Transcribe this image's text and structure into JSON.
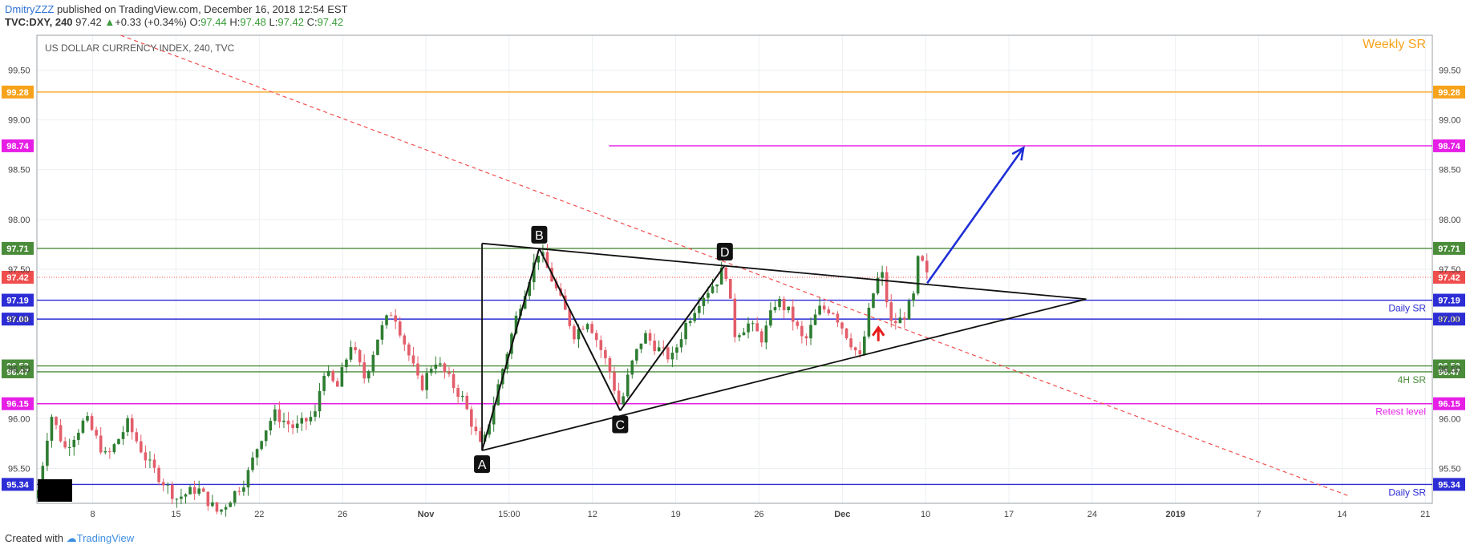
{
  "header": {
    "author": "DmitryZZZ",
    "published": " published on TradingView.com, December 16, 2018 12:54 EST",
    "symbol": "TVC:DXY, 240",
    "last": "97.42",
    "change": "+0.33 (+0.34%)",
    "o_label": "O:",
    "o_val": "97.44",
    "h_label": "H:",
    "h_val": "97.48",
    "l_label": "L:",
    "l_val": "97.42",
    "c_label": "C:",
    "c_val": "97.42"
  },
  "footer": {
    "created": "Created with",
    "brand": "TradingView"
  },
  "chart_data": {
    "type": "candlestick",
    "title": "US DOLLAR CURRENCY INDEX, 240, TVC",
    "ylim": [
      95.15,
      99.85
    ],
    "y_ticks": [
      95.5,
      96.0,
      96.5,
      97.0,
      97.5,
      98.0,
      98.5,
      99.0,
      99.5
    ],
    "x_ticks": [
      "8",
      "15",
      "22",
      "26",
      "Nov",
      "15:00",
      "12",
      "19",
      "26",
      "Dec",
      "10",
      "17",
      "24",
      "2019",
      "7",
      "14",
      "21"
    ],
    "levels": [
      {
        "value": 99.28,
        "label": "99.28",
        "color": "#f7a21b",
        "note": "Weekly SR",
        "note_at": "top"
      },
      {
        "value": 98.74,
        "label": "98.74",
        "color": "#e61ee6",
        "note": ""
      },
      {
        "value": 97.71,
        "label": "97.71",
        "color": "#4a8c3a",
        "note": ""
      },
      {
        "value": 97.19,
        "label": "97.19",
        "color": "#2d2dd6",
        "note": "Daily SR"
      },
      {
        "value": 97.0,
        "label": "97.00",
        "color": "#2d2dd6",
        "note": ""
      },
      {
        "value": 96.53,
        "label": "96.53",
        "color": "#4a8c3a",
        "note": ""
      },
      {
        "value": 96.47,
        "label": "96.47",
        "color": "#4a8c3a",
        "note": "4H SR"
      },
      {
        "value": 96.15,
        "label": "96.15",
        "color": "#e61ee6",
        "note": "Retest level"
      },
      {
        "value": 95.34,
        "label": "95.34",
        "color": "#2d2dd6",
        "note": "Daily SR"
      }
    ],
    "last_price": {
      "value": 97.42,
      "label": "97.42",
      "color": "#f04d4d"
    },
    "pattern_points": [
      {
        "name": "A",
        "x_frac": 0.319,
        "y": 95.68
      },
      {
        "name": "B",
        "x_frac": 0.36,
        "y": 97.71
      },
      {
        "name": "C",
        "x_frac": 0.418,
        "y": 96.08
      },
      {
        "name": "D",
        "x_frac": 0.493,
        "y": 97.54
      }
    ],
    "trend_upper": [
      [
        0.319,
        97.76
      ],
      [
        0.752,
        97.2
      ]
    ],
    "trend_lower": [
      [
        0.319,
        95.68
      ],
      [
        0.752,
        97.2
      ]
    ],
    "forecast_arrow": [
      [
        0.638,
        97.36
      ],
      [
        0.707,
        98.72
      ]
    ],
    "downtrend": [
      [
        0.06,
        99.85
      ],
      [
        0.941,
        95.22
      ]
    ],
    "signal_arrow_x": 0.603,
    "candle_path": [
      [
        0.0,
        95.2
      ],
      [
        0.01,
        96.05
      ],
      [
        0.02,
        95.7
      ],
      [
        0.035,
        96.0
      ],
      [
        0.05,
        95.6
      ],
      [
        0.065,
        95.95
      ],
      [
        0.08,
        95.55
      ],
      [
        0.1,
        95.2
      ],
      [
        0.115,
        95.3
      ],
      [
        0.13,
        95.05
      ],
      [
        0.15,
        95.4
      ],
      [
        0.16,
        95.8
      ],
      [
        0.17,
        96.05
      ],
      [
        0.185,
        95.9
      ],
      [
        0.2,
        96.05
      ],
      [
        0.205,
        96.5
      ],
      [
        0.215,
        96.3
      ],
      [
        0.225,
        96.75
      ],
      [
        0.235,
        96.4
      ],
      [
        0.245,
        96.85
      ],
      [
        0.255,
        97.1
      ],
      [
        0.265,
        96.7
      ],
      [
        0.275,
        96.3
      ],
      [
        0.285,
        96.6
      ],
      [
        0.295,
        96.4
      ],
      [
        0.305,
        96.2
      ],
      [
        0.319,
        95.68
      ],
      [
        0.33,
        96.3
      ],
      [
        0.345,
        97.1
      ],
      [
        0.355,
        97.5
      ],
      [
        0.36,
        97.7
      ],
      [
        0.372,
        97.3
      ],
      [
        0.385,
        96.85
      ],
      [
        0.395,
        97.0
      ],
      [
        0.41,
        96.5
      ],
      [
        0.418,
        96.1
      ],
      [
        0.425,
        96.5
      ],
      [
        0.435,
        96.85
      ],
      [
        0.445,
        96.7
      ],
      [
        0.455,
        96.6
      ],
      [
        0.465,
        96.95
      ],
      [
        0.475,
        97.2
      ],
      [
        0.488,
        97.4
      ],
      [
        0.493,
        97.54
      ],
      [
        0.5,
        96.85
      ],
      [
        0.51,
        96.95
      ],
      [
        0.52,
        96.8
      ],
      [
        0.53,
        97.2
      ],
      [
        0.54,
        97.05
      ],
      [
        0.55,
        96.75
      ],
      [
        0.56,
        97.1
      ],
      [
        0.57,
        97.1
      ],
      [
        0.58,
        96.85
      ],
      [
        0.59,
        96.6
      ],
      [
        0.598,
        97.2
      ],
      [
        0.605,
        97.5
      ],
      [
        0.612,
        96.95
      ],
      [
        0.62,
        97.0
      ],
      [
        0.628,
        97.2
      ],
      [
        0.632,
        97.65
      ],
      [
        0.638,
        97.42
      ]
    ]
  }
}
